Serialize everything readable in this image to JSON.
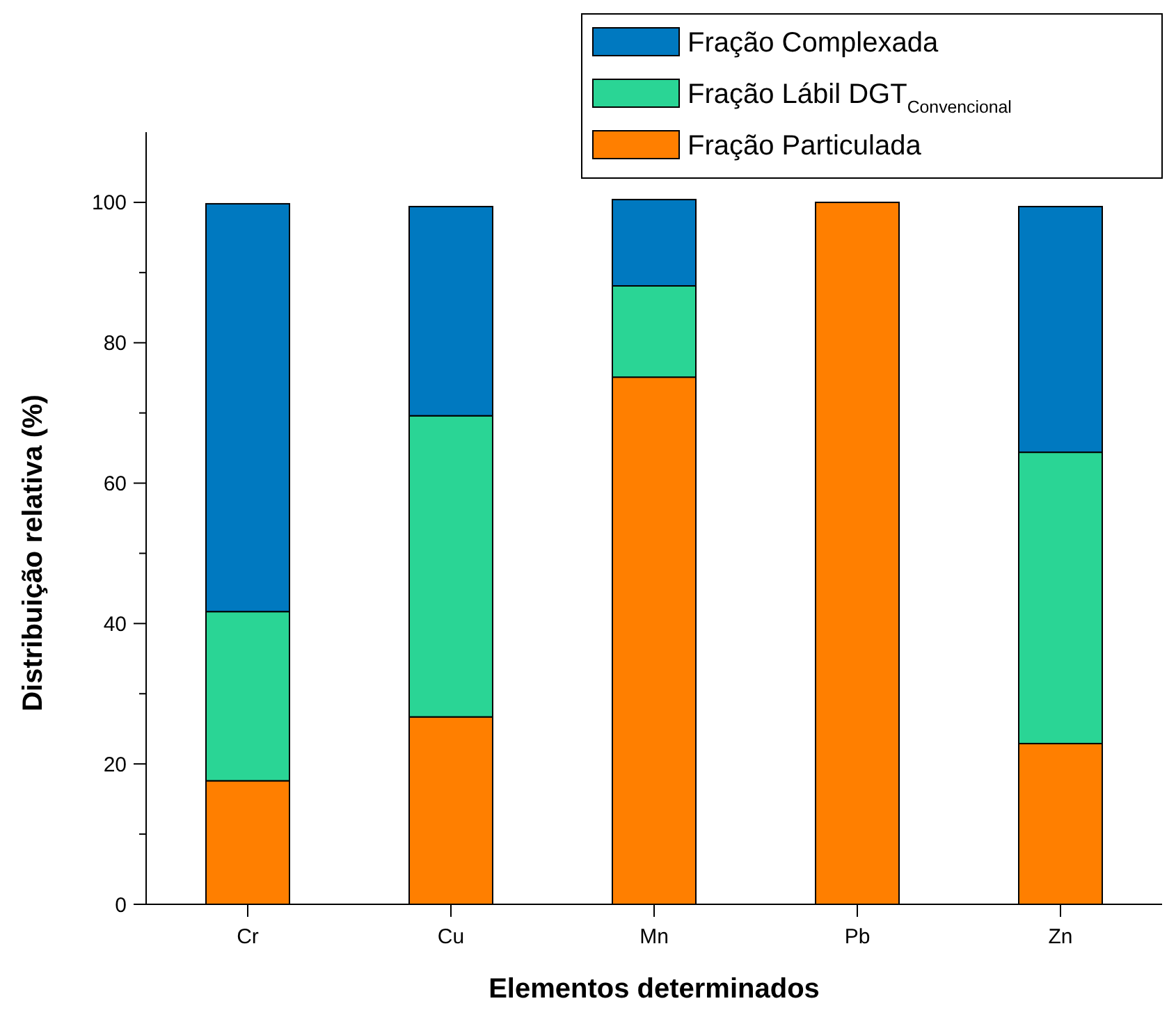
{
  "chart_data": {
    "type": "bar",
    "stacked": true,
    "xlabel": "Elementos determinados",
    "ylabel": "Distribuição relativa (%)",
    "categories": [
      "Cr",
      "Cu",
      "Mn",
      "Pb",
      "Zn"
    ],
    "series": [
      {
        "name": "Fração Particulada",
        "color": "#ff7f00",
        "values": [
          17.6,
          26.7,
          75.1,
          100,
          22.9
        ]
      },
      {
        "name": "Fração Lábil DGT$_{Convencional}$",
        "color": "#2ad595",
        "values": [
          24.1,
          42.9,
          13.0,
          0,
          41.5
        ]
      },
      {
        "name": "Fração Complexada",
        "color": "#0079c0",
        "values": [
          58.1,
          29.8,
          12.3,
          0,
          35.0
        ]
      }
    ],
    "ylim": [
      0,
      110
    ],
    "yticks": [
      0,
      {
        "value": 10,
        "label": null
      },
      20,
      {
        "value": 30,
        "label": null
      },
      40,
      {
        "value": 50,
        "label": null
      },
      60,
      {
        "value": 70,
        "label": null
      },
      80,
      {
        "value": 90,
        "label": null
      },
      100
    ],
    "grid": false,
    "legend": "top right"
  }
}
